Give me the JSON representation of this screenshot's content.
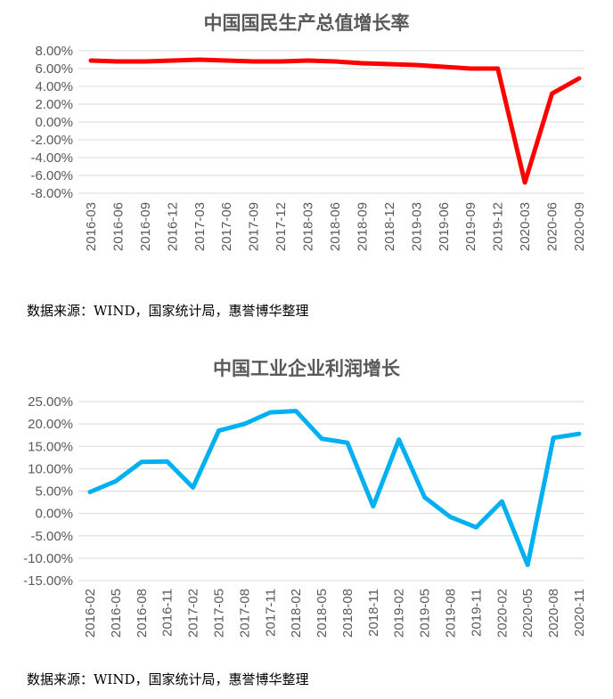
{
  "chart_data": [
    {
      "type": "line",
      "title": "中国国民生产总值增长率",
      "color": "#ff0000",
      "ylim": [
        -8,
        8
      ],
      "yticks": [
        "8.00%",
        "6.00%",
        "4.00%",
        "2.00%",
        "0.00%",
        "-2.00%",
        "-4.00%",
        "-6.00%",
        "-8.00%"
      ],
      "categories": [
        "2016-03",
        "2016-06",
        "2016-09",
        "2016-12",
        "2017-03",
        "2017-06",
        "2017-09",
        "2017-12",
        "2018-03",
        "2018-06",
        "2018-09",
        "2018-12",
        "2019-03",
        "2019-06",
        "2019-09",
        "2019-12",
        "2020-03",
        "2020-06",
        "2020-09"
      ],
      "values": [
        6.9,
        6.8,
        6.8,
        6.9,
        7.0,
        6.9,
        6.8,
        6.8,
        6.9,
        6.8,
        6.6,
        6.5,
        6.4,
        6.2,
        6.0,
        6.0,
        -6.8,
        3.2,
        4.9
      ],
      "grid": true,
      "source": "数据来源：WIND，国家统计局，惠誉博华整理"
    },
    {
      "type": "line",
      "title": "中国工业企业利润增长",
      "color": "#00b0f0",
      "ylim": [
        -15,
        25
      ],
      "yticks": [
        "25.00%",
        "20.00%",
        "15.00%",
        "10.00%",
        "5.00%",
        "0.00%",
        "-5.00%",
        "-10.00%",
        "-15.00%"
      ],
      "categories": [
        "2016-02",
        "2016-05",
        "2016-08",
        "2016-11",
        "2017-02",
        "2017-05",
        "2017-08",
        "2017-11",
        "2018-02",
        "2018-05",
        "2018-08",
        "2018-11",
        "2019-02",
        "2019-05",
        "2019-08",
        "2019-11",
        "2020-02",
        "2020-05",
        "2020-08",
        "2020-11"
      ],
      "values": [
        4.8,
        7.2,
        11.5,
        11.6,
        5.8,
        18.5,
        20.0,
        22.6,
        22.9,
        16.7,
        15.8,
        1.6,
        16.5,
        3.6,
        -0.8,
        -3.1,
        2.7,
        -11.5,
        16.9,
        17.8
      ],
      "grid": true,
      "source": "数据来源：WIND，国家统计局，惠誉博华整理"
    }
  ]
}
